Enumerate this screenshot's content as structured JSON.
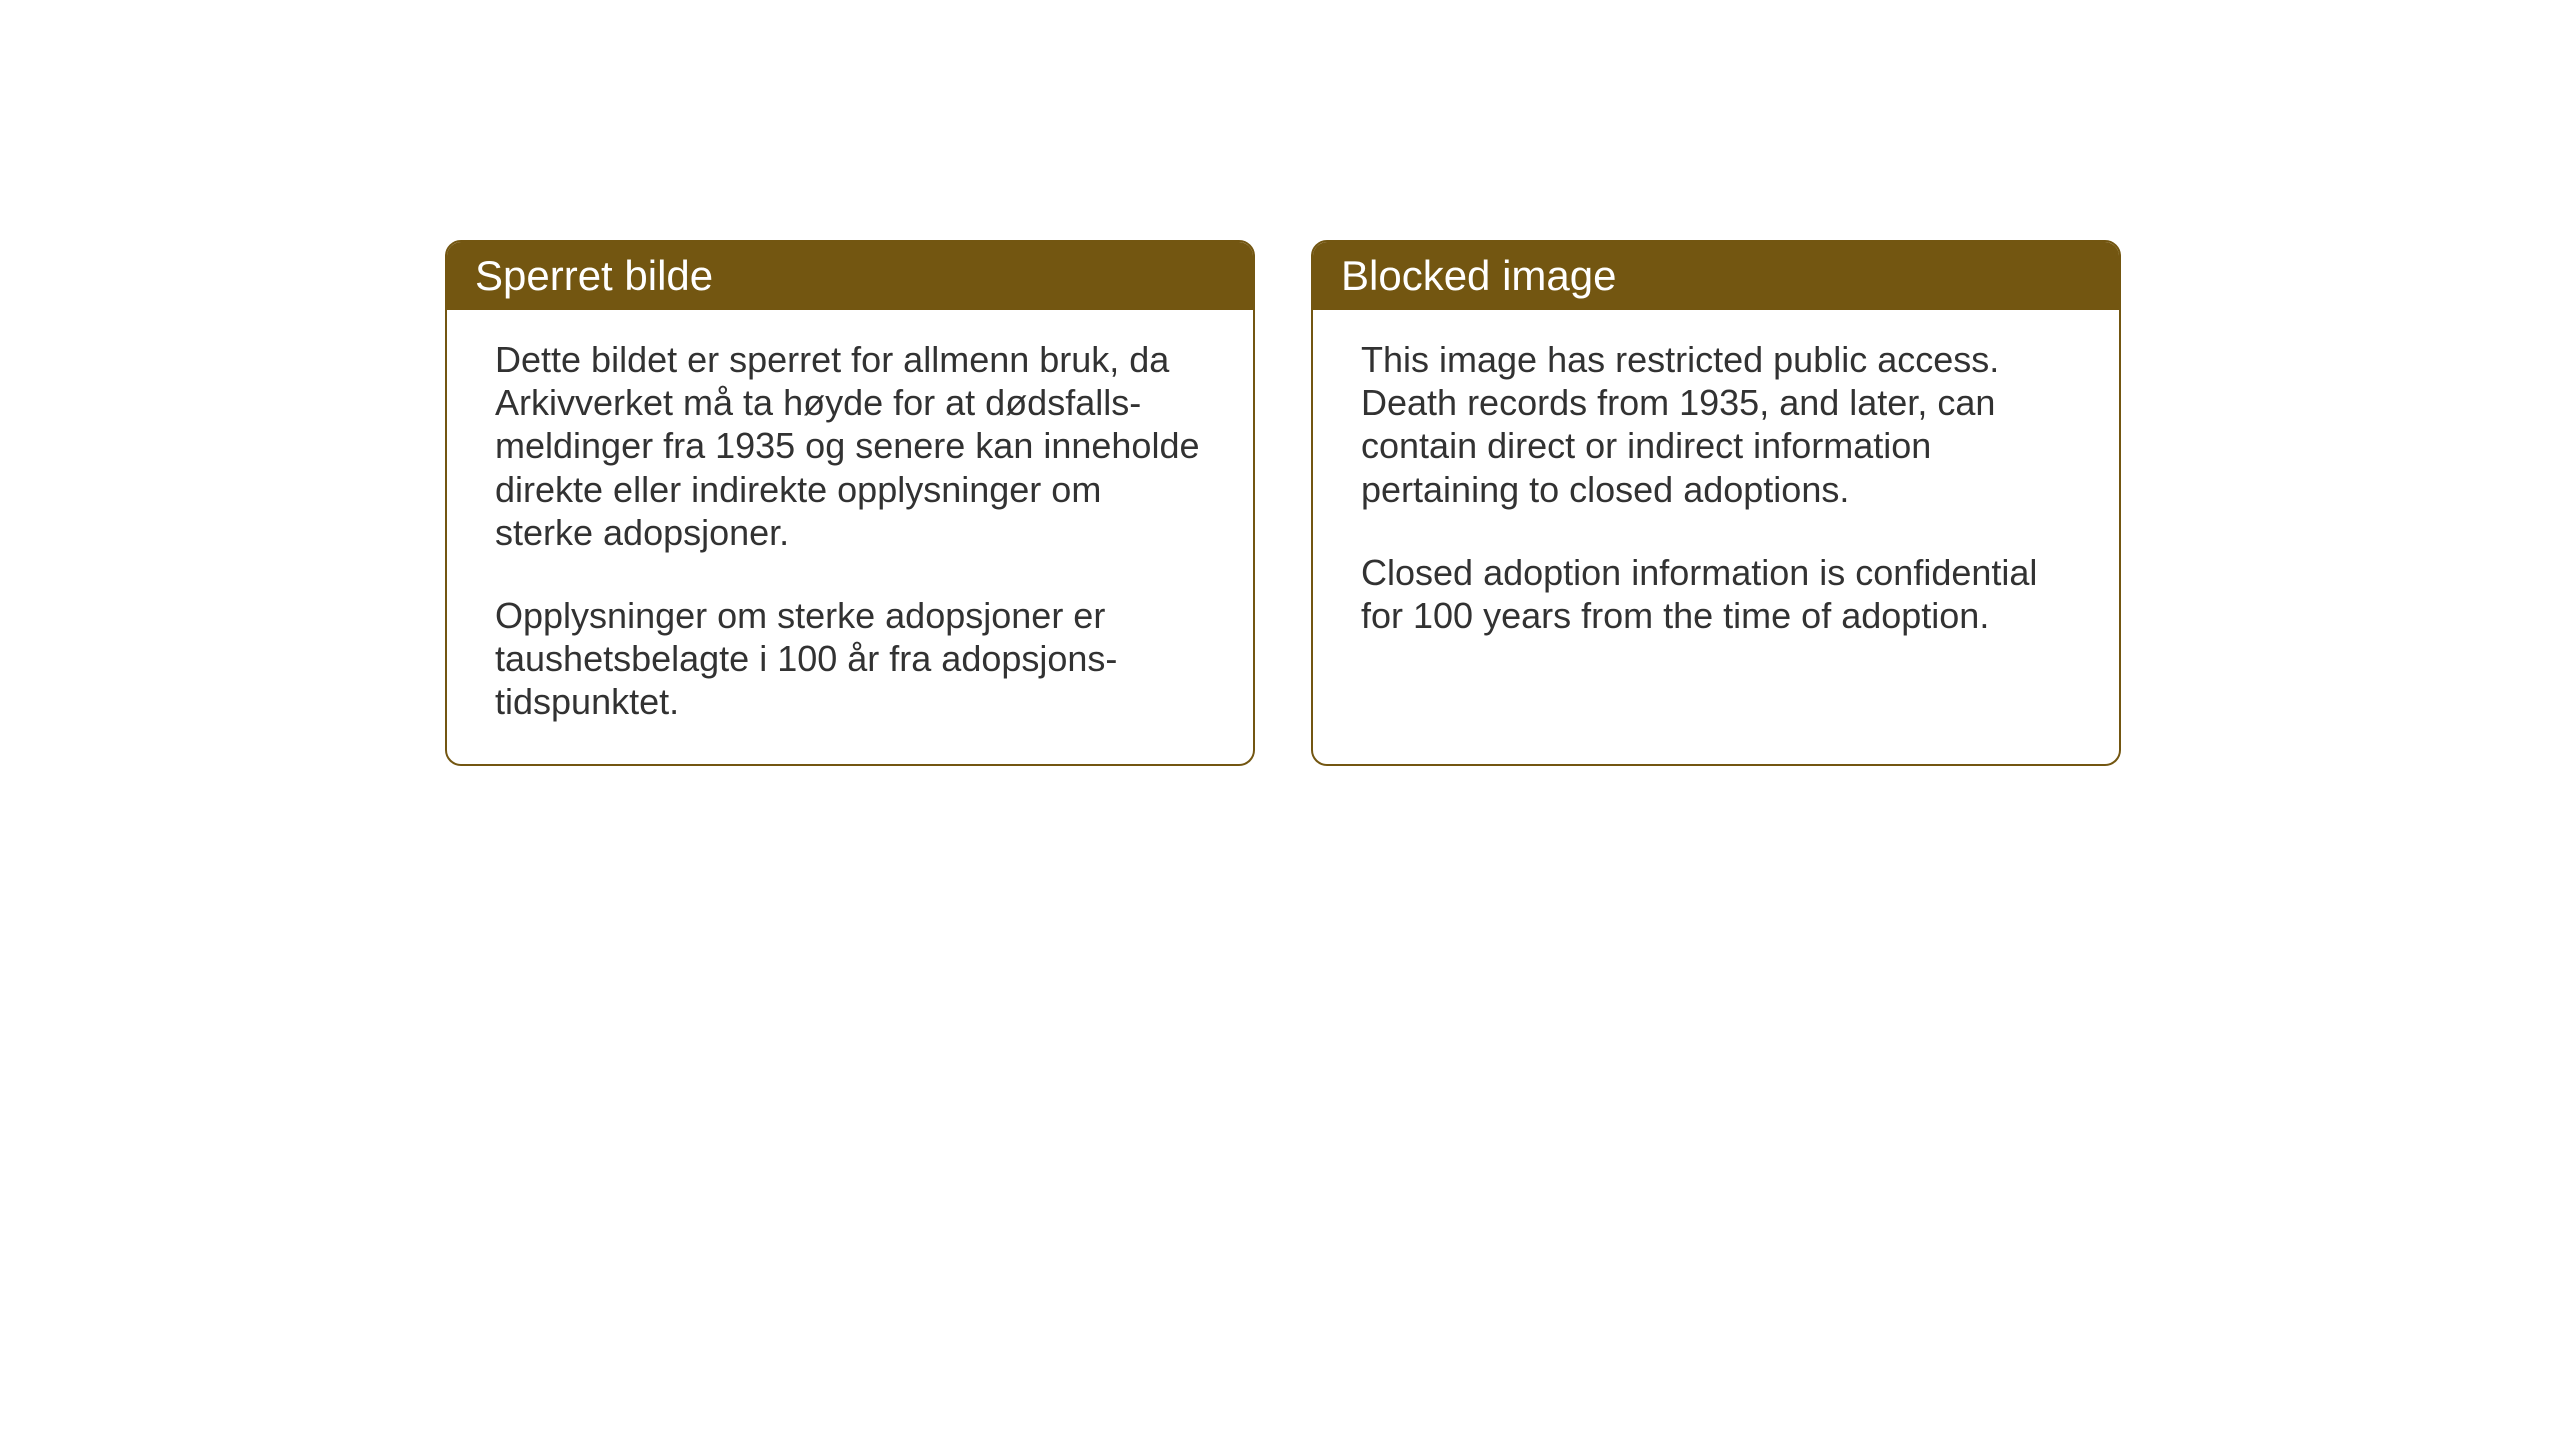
{
  "layout": {
    "background_color": "#ffffff",
    "card_border_color": "#735611",
    "header_background_color": "#735611",
    "header_text_color": "#ffffff",
    "body_text_color": "#323232",
    "title_fontsize": 42,
    "body_fontsize": 36,
    "border_radius": 16,
    "card_gap": 56
  },
  "cards": {
    "norwegian": {
      "title": "Sperret bilde",
      "paragraph1": "Dette bildet er sperret for allmenn bruk, da Arkivverket må ta høyde for at dødsfalls-meldinger fra 1935 og senere kan inneholde direkte eller indirekte opplysninger om sterke adopsjoner.",
      "paragraph2": "Opplysninger om sterke adopsjoner er taushetsbelagte i 100 år fra adopsjons-tidspunktet."
    },
    "english": {
      "title": "Blocked image",
      "paragraph1": "This image has restricted public access. Death records from 1935, and later, can contain direct or indirect information pertaining to closed adoptions.",
      "paragraph2": "Closed adoption information is confidential for 100 years from the time of adoption."
    }
  }
}
